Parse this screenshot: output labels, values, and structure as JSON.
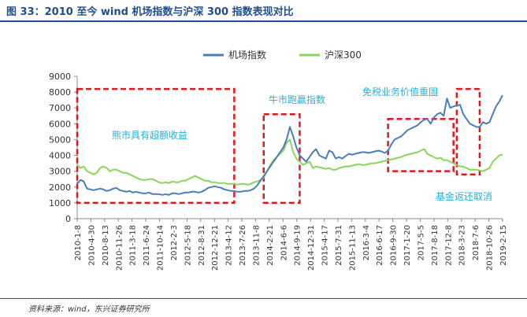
{
  "page": {
    "title": "图 33：2010 至今 wind 机场指数与沪深 300 指数表现对比",
    "source": "资料来源：wind，东兴证券研究所"
  },
  "colors": {
    "series_airport": "#4a7ebb",
    "series_hs300": "#8cd45c",
    "highlight_box": "#e8141b",
    "annotation_text": "#27b0d8",
    "axis": "#888888",
    "title": "#1f4e8c"
  },
  "chart_data": {
    "type": "line",
    "title": "",
    "xlabel": "",
    "ylabel": "",
    "ylim": [
      0,
      9000
    ],
    "y_ticks": [
      0,
      1000,
      2000,
      3000,
      4000,
      5000,
      6000,
      7000,
      8000,
      9000
    ],
    "x_ticks": [
      "2010-1-8",
      "2010-4-30",
      "2010-8-13",
      "2010-11-26",
      "2011-3-18",
      "2011-6-24",
      "2011-10-14",
      "2012-2-3",
      "2012-5-18",
      "2012-8-31",
      "2012-12-21",
      "2013-4-12",
      "2013-7-26",
      "2013-11-8",
      "2014-2-21",
      "2014-6-6",
      "2014-9-19",
      "2014-12-31",
      "2015-4-17",
      "2015-7-31",
      "2015-11-13",
      "2016-3-4",
      "2016-6-17",
      "2016-9-30",
      "2017-1-20",
      "2017-5-5",
      "2017-8-18",
      "2017-12-8",
      "2018-3-23",
      "2018-7-6",
      "2018-10-26",
      "2019-2-15"
    ],
    "legend": [
      "机场指数",
      "沪深300"
    ],
    "legend_position": "top-center",
    "series": [
      {
        "name": "机场指数",
        "values": [
          2200,
          2450,
          2350,
          1900,
          1850,
          1800,
          1850,
          1900,
          1850,
          1750,
          1800,
          1900,
          1950,
          1800,
          1750,
          1700,
          1750,
          1650,
          1700,
          1650,
          1600,
          1600,
          1650,
          1550,
          1550,
          1550,
          1500,
          1550,
          1500,
          1600,
          1600,
          1550,
          1600,
          1650,
          1650,
          1700,
          1700,
          1650,
          1700,
          1800,
          1950,
          2000,
          2050,
          2000,
          1950,
          1850,
          1800,
          1750,
          1750,
          1700,
          1700,
          1750,
          1750,
          1800,
          1900,
          2100,
          2400,
          2700,
          3000,
          3300,
          3600,
          3900,
          4200,
          4500,
          5000,
          5800,
          5200,
          4500,
          4000,
          3800,
          3600,
          3900,
          4200,
          4400,
          4000,
          3900,
          3800,
          4300,
          4200,
          3800,
          3900,
          3800,
          3950,
          4100,
          4050,
          4100,
          4150,
          4200,
          4200,
          4150,
          4200,
          4250,
          4300,
          4250,
          4150,
          4300,
          4700,
          5000,
          5100,
          5200,
          5400,
          5600,
          5700,
          5800,
          5900,
          6100,
          6250,
          6300,
          6000,
          6400,
          6600,
          6700,
          6500,
          7600,
          7000,
          7100,
          7150,
          7200,
          6600,
          6300,
          6000,
          5900,
          5800,
          5800,
          6100,
          6000,
          6100,
          6600,
          7100,
          7400,
          7800
        ]
      },
      {
        "name": "沪深300",
        "values": [
          3400,
          3200,
          3300,
          3000,
          2900,
          2800,
          2900,
          3200,
          3300,
          3200,
          3000,
          3100,
          3100,
          3000,
          2900,
          2900,
          2800,
          2700,
          2600,
          2500,
          2450,
          2450,
          2500,
          2500,
          2400,
          2300,
          2250,
          2300,
          2250,
          2350,
          2300,
          2300,
          2400,
          2400,
          2500,
          2600,
          2700,
          2600,
          2500,
          2400,
          2400,
          2300,
          2300,
          2250,
          2250,
          2250,
          2200,
          2200,
          2200,
          2150,
          2200,
          2200,
          2150,
          2200,
          2300,
          2350,
          2450,
          2600,
          3000,
          3400,
          3700,
          3900,
          4100,
          4300,
          4800,
          5000,
          4200,
          3800,
          3600,
          3400,
          3500,
          3600,
          3200,
          3300,
          3250,
          3200,
          3150,
          3200,
          3100,
          3100,
          3200,
          3250,
          3300,
          3300,
          3350,
          3400,
          3450,
          3400,
          3400,
          3450,
          3500,
          3500,
          3550,
          3600,
          3650,
          3700,
          3750,
          3800,
          3850,
          3900,
          4000,
          4050,
          4100,
          4150,
          4200,
          4300,
          4400,
          4100,
          4000,
          3900,
          3800,
          3850,
          3700,
          3700,
          3600,
          3500,
          3400,
          3300,
          3300,
          3200,
          3100,
          3100,
          3100,
          3050,
          3000,
          3100,
          3200,
          3600,
          3800,
          4000,
          4050
        ]
      }
    ],
    "annotations": [
      {
        "text": "熊市具有超额收益",
        "box_x_range": [
          0,
          48
        ],
        "box_y_range": [
          1000,
          8200
        ]
      },
      {
        "text": "牛市跑赢指数",
        "box_x_range": [
          57,
          68
        ],
        "box_y_range": [
          1000,
          6600
        ]
      },
      {
        "text": "免税业务价值重固",
        "box_x_range": [
          95,
          115
        ],
        "box_y_range": [
          3000,
          6300
        ]
      },
      {
        "text": "基金返还取消",
        "box_x_range": [
          116,
          123
        ],
        "box_y_range": [
          2800,
          8200
        ]
      }
    ]
  }
}
